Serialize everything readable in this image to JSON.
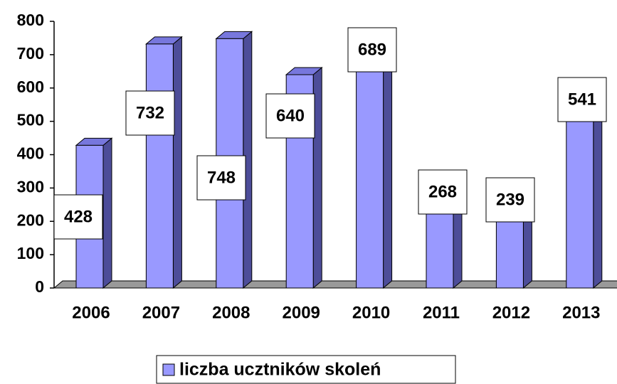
{
  "chart_data": {
    "type": "bar3d",
    "categories": [
      "2006",
      "2007",
      "2008",
      "2009",
      "2010",
      "2011",
      "2012",
      "2013"
    ],
    "series": [
      {
        "name": "liczba ucztników skoleń",
        "color": "#9999ff",
        "values": [
          428,
          732,
          748,
          640,
          689,
          268,
          239,
          541
        ]
      }
    ],
    "ylim": [
      0,
      800
    ],
    "yticks": [
      0,
      100,
      200,
      300,
      400,
      500,
      600,
      700,
      800
    ],
    "legend": "bottom"
  }
}
